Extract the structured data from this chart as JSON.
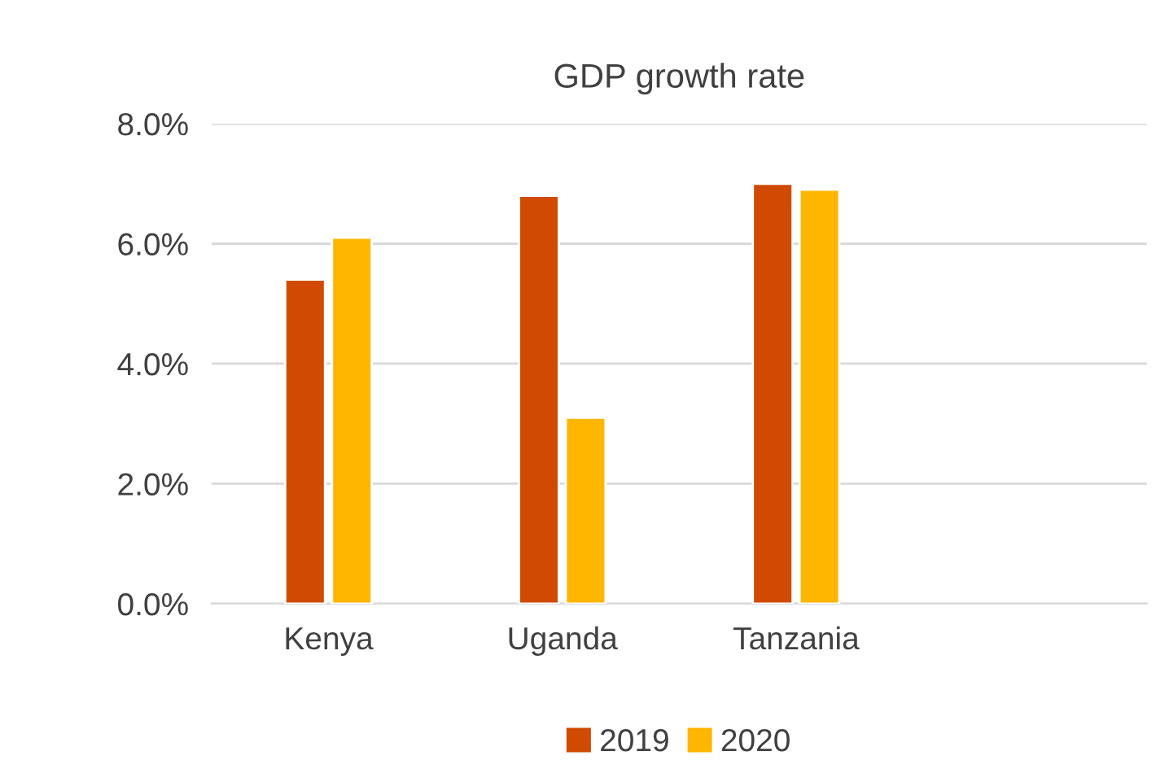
{
  "chart_data": {
    "type": "bar",
    "title": "GDP growth rate",
    "categories": [
      "Kenya",
      "Uganda",
      "Tanzania",
      null
    ],
    "series": [
      {
        "name": "2019",
        "color": "#d04a02",
        "values": [
          5.4,
          6.8,
          7.0,
          null
        ]
      },
      {
        "name": "2020",
        "color": "#ffb600",
        "values": [
          6.1,
          3.1,
          6.9,
          null
        ]
      }
    ],
    "ylim": [
      0,
      8
    ],
    "yticks": [
      {
        "value": 0,
        "label": "0.0%"
      },
      {
        "value": 2,
        "label": "2.0%"
      },
      {
        "value": 4,
        "label": "4.0%"
      },
      {
        "value": 6,
        "label": "6.0%"
      },
      {
        "value": 8,
        "label": "8.0%"
      }
    ],
    "grid": "y",
    "legend": "bottom"
  }
}
